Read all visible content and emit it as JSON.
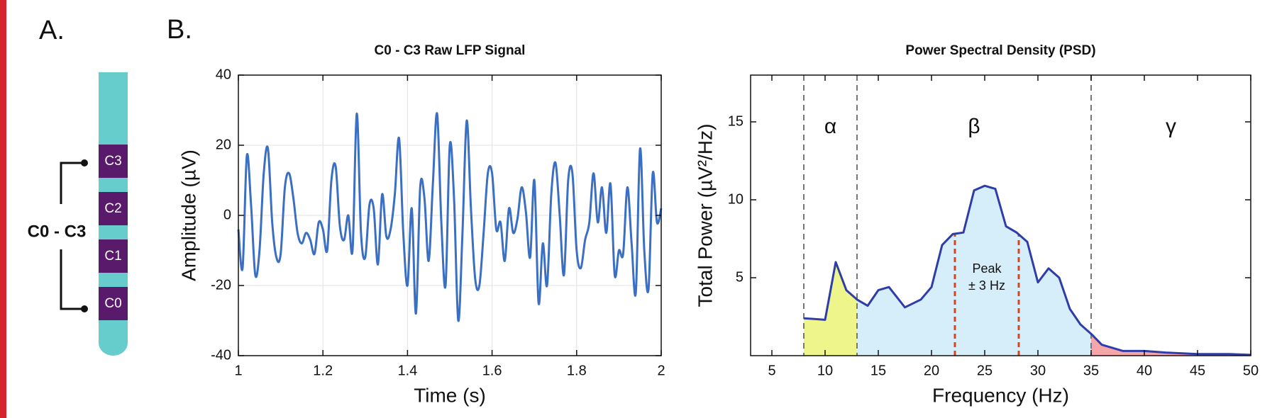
{
  "panels": {
    "a_label": "A.",
    "b_label": "B."
  },
  "electrode": {
    "label": "C0 - C3",
    "contacts": [
      "C3",
      "C2",
      "C1",
      "C0"
    ]
  },
  "chart_data": [
    {
      "type": "line",
      "title": "C0 - C3 Raw LFP Signal",
      "x_label": "Time (s)",
      "y_label": "Amplitude (µV)",
      "x": [
        1.0,
        1.01,
        1.02,
        1.03,
        1.04,
        1.05,
        1.06,
        1.07,
        1.08,
        1.09,
        1.1,
        1.11,
        1.12,
        1.13,
        1.14,
        1.15,
        1.16,
        1.17,
        1.18,
        1.19,
        1.2,
        1.21,
        1.22,
        1.23,
        1.24,
        1.25,
        1.26,
        1.27,
        1.28,
        1.29,
        1.3,
        1.31,
        1.32,
        1.33,
        1.34,
        1.35,
        1.36,
        1.37,
        1.38,
        1.39,
        1.4,
        1.41,
        1.42,
        1.43,
        1.44,
        1.45,
        1.46,
        1.47,
        1.48,
        1.49,
        1.5,
        1.51,
        1.52,
        1.53,
        1.54,
        1.55,
        1.56,
        1.57,
        1.58,
        1.59,
        1.6,
        1.61,
        1.62,
        1.63,
        1.64,
        1.65,
        1.66,
        1.67,
        1.68,
        1.69,
        1.7,
        1.71,
        1.72,
        1.73,
        1.74,
        1.75,
        1.76,
        1.77,
        1.78,
        1.79,
        1.8,
        1.81,
        1.82,
        1.83,
        1.84,
        1.85,
        1.86,
        1.87,
        1.88,
        1.89,
        1.9,
        1.91,
        1.92,
        1.93,
        1.94,
        1.95,
        1.96,
        1.97,
        1.98,
        1.99,
        2.0
      ],
      "series": [
        {
          "color": "#3a6fc4",
          "values": [
            -4,
            -15,
            17,
            3,
            -17,
            -10,
            12,
            19,
            -2,
            -12,
            -11,
            8,
            12,
            5,
            -5,
            -8,
            -5,
            -7,
            -11,
            -2,
            -4,
            -10,
            10,
            14,
            -3,
            -7,
            0,
            -10,
            29,
            -5,
            -12,
            3,
            2,
            -14,
            6,
            -6,
            -4,
            6,
            22,
            -5,
            -20,
            2,
            -28,
            8,
            5,
            -13,
            9,
            29,
            -2,
            -20,
            20,
            5,
            -30,
            -5,
            27,
            2,
            -18,
            -20,
            -5,
            12,
            12,
            -4,
            -2,
            -13,
            2,
            -5,
            -1,
            8,
            1,
            -12,
            10,
            -25,
            -8,
            -20,
            6,
            15,
            0,
            -17,
            10,
            12,
            -10,
            -15,
            -7,
            -2,
            12,
            -2,
            8,
            -5,
            9,
            -17,
            -10,
            -11,
            8,
            -8,
            -22,
            19,
            -10,
            -21,
            12,
            -2,
            2
          ]
        }
      ],
      "xlim": [
        1,
        2
      ],
      "ylim": [
        -40,
        40
      ],
      "xticks": [
        1,
        1.2,
        1.4,
        1.6,
        1.8,
        2
      ],
      "yticks": [
        -40,
        -20,
        0,
        20,
        40
      ],
      "grid": true
    },
    {
      "type": "area",
      "title": "Power Spectral Density (PSD)",
      "x_label": "Frequency (Hz)",
      "y_label": "Total Power (µV²/Hz)",
      "x": [
        8,
        10,
        11,
        12,
        13,
        14,
        15,
        16,
        17.5,
        19,
        20,
        21,
        22,
        23,
        24,
        25,
        26,
        27,
        28,
        29,
        30,
        31,
        32,
        33,
        34,
        35,
        36,
        38,
        40,
        42,
        45,
        48,
        50
      ],
      "series": [
        {
          "color": "#2e3da8",
          "values": [
            2.4,
            2.3,
            6,
            4.2,
            3.6,
            3.2,
            4.2,
            4.4,
            3.1,
            3.6,
            4.4,
            7.1,
            7.8,
            7.9,
            10.6,
            10.9,
            10.7,
            8.3,
            7.9,
            7.3,
            4.7,
            5.6,
            5,
            3,
            2,
            1.4,
            0.7,
            0.3,
            0.3,
            0.2,
            0.1,
            0.1,
            0.05
          ]
        }
      ],
      "bands": [
        {
          "name": "α",
          "range": [
            8,
            13
          ],
          "color": "#eef58a"
        },
        {
          "name": "β",
          "range": [
            13,
            35
          ],
          "color": "#d6eefa"
        },
        {
          "name": "γ",
          "range": [
            35,
            50
          ],
          "color": "#f4a6a8"
        }
      ],
      "annotation": {
        "text": [
          "Peak",
          "± 3 Hz"
        ],
        "x": [
          22.2,
          28.2
        ],
        "color": "#e0401c"
      },
      "xlim": [
        3,
        50
      ],
      "ylim": [
        0,
        18
      ],
      "xticks": [
        5,
        10,
        15,
        20,
        25,
        30,
        35,
        40,
        45,
        50
      ],
      "yticks": [
        5,
        10,
        15
      ],
      "grid": false
    }
  ]
}
